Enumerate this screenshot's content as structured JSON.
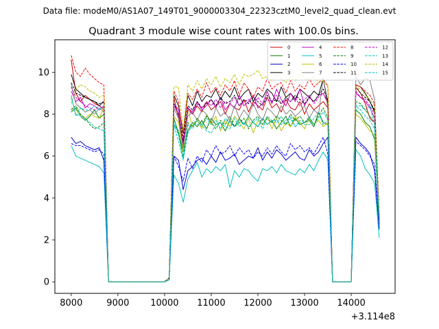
{
  "figure": {
    "suptitle": "Data file: modeM0/AS1A07_149T01_9000003304_22323cztM0_level2_quad_clean.evt"
  },
  "chart_data": {
    "type": "line",
    "title": "Quadrant 3 module wise count rates with 100.0s bins.",
    "xlabel": "",
    "ylabel": "",
    "x_offset_label": "+3.114e8",
    "xlim": [
      7650,
      14940
    ],
    "ylim": [
      -0.55,
      11.55
    ],
    "xticks": [
      8000,
      9000,
      10000,
      11000,
      12000,
      13000,
      14000
    ],
    "xtick_labels": [
      "8000",
      "9000",
      "10000",
      "11000",
      "12000",
      "13000",
      "14000"
    ],
    "yticks": [
      0,
      2,
      4,
      6,
      8,
      10
    ],
    "ytick_labels": [
      "0",
      "2",
      "4",
      "6",
      "8",
      "10"
    ],
    "grid": false,
    "legend_position": "top-right",
    "legend_columns": 4,
    "x": [
      8000,
      8100,
      8200,
      8300,
      8400,
      8500,
      8600,
      8700,
      8800,
      8900,
      9000,
      9100,
      9200,
      9300,
      9400,
      9500,
      9600,
      9700,
      9800,
      9900,
      10000,
      10100,
      10200,
      10300,
      10400,
      10500,
      10600,
      10700,
      10800,
      10900,
      11000,
      11100,
      11200,
      11300,
      11400,
      11500,
      11600,
      11700,
      11800,
      11900,
      12000,
      12100,
      12200,
      12300,
      12400,
      12500,
      12600,
      12700,
      12800,
      12900,
      13000,
      13100,
      13200,
      13300,
      13400,
      13500,
      13600,
      13700,
      13800,
      13900,
      14000,
      14100,
      14200,
      14300,
      14400,
      14500,
      14600
    ],
    "series": [
      {
        "name": "0",
        "color": "#cc0000",
        "dash": "solid",
        "values": [
          10.6,
          9.0,
          8.6,
          8.9,
          8.7,
          8.5,
          8.4,
          8.2,
          0,
          0,
          0,
          0,
          0,
          0,
          0,
          0,
          0,
          0,
          0,
          0,
          0,
          0.2,
          8.8,
          7.8,
          6.4,
          8.3,
          8.0,
          8.4,
          8.1,
          8.6,
          8.2,
          8.4,
          8.6,
          8.0,
          8.5,
          8.3,
          8.2,
          8.7,
          8.1,
          8.6,
          8.4,
          8.2,
          8.8,
          8.3,
          8.5,
          8.1,
          8.7,
          8.3,
          8.2,
          8.6,
          8.0,
          8.5,
          8.2,
          8.4,
          8.6,
          8.3,
          0,
          0,
          0,
          0,
          0,
          9.3,
          9.0,
          8.5,
          7.8,
          7.6,
          2.8
        ]
      },
      {
        "name": "1",
        "color": "#007f00",
        "dash": "solid",
        "values": [
          8.1,
          8.3,
          7.9,
          7.7,
          7.9,
          8.2,
          7.8,
          8.0,
          0,
          0,
          0,
          0,
          0,
          0,
          0,
          0,
          0,
          0,
          0,
          0,
          0,
          0.1,
          7.8,
          7.1,
          6.2,
          7.2,
          7.6,
          7.4,
          7.7,
          7.3,
          7.8,
          7.5,
          7.6,
          7.2,
          7.7,
          7.4,
          7.8,
          7.5,
          7.9,
          7.6,
          7.4,
          7.8,
          7.5,
          7.7,
          7.3,
          7.6,
          7.9,
          7.4,
          7.8,
          7.5,
          7.6,
          7.7,
          7.4,
          8.1,
          7.6,
          7.5,
          0,
          0,
          0,
          0,
          0,
          8.2,
          8.0,
          7.6,
          7.4,
          6.8,
          2.8
        ]
      },
      {
        "name": "2",
        "color": "#0000cc",
        "dash": "solid",
        "values": [
          6.9,
          6.6,
          6.7,
          6.5,
          6.4,
          6.3,
          6.4,
          5.8,
          0,
          0,
          0,
          0,
          0,
          0,
          0,
          0,
          0,
          0,
          0,
          0,
          0,
          0.1,
          6.0,
          5.8,
          4.4,
          5.3,
          5.5,
          5.8,
          5.9,
          5.6,
          6.0,
          5.7,
          6.2,
          5.8,
          5.9,
          6.1,
          5.6,
          5.8,
          6.0,
          5.9,
          6.4,
          5.8,
          6.2,
          5.9,
          6.3,
          6.1,
          5.8,
          6.0,
          6.2,
          5.9,
          5.8,
          6.3,
          6.0,
          6.2,
          6.6,
          6.9,
          0,
          0,
          0,
          0,
          0,
          6.9,
          6.6,
          6.4,
          6.1,
          5.3,
          2.5
        ]
      },
      {
        "name": "3",
        "color": "#000000",
        "dash": "solid",
        "values": [
          9.9,
          9.2,
          9.0,
          8.8,
          8.7,
          8.6,
          8.4,
          8.6,
          0,
          0,
          0,
          0,
          0,
          0,
          0,
          0,
          0,
          0,
          0,
          0,
          0,
          0.2,
          8.9,
          8.4,
          7.1,
          8.9,
          8.4,
          9.1,
          8.6,
          8.9,
          8.8,
          9.2,
          8.7,
          9.1,
          8.8,
          9.3,
          8.7,
          9.0,
          9.2,
          8.6,
          9.0,
          8.8,
          9.2,
          9.0,
          8.6,
          9.3,
          8.8,
          9.0,
          8.7,
          9.2,
          9.0,
          8.8,
          9.1,
          8.9,
          9.7,
          8.5,
          0,
          0,
          0,
          0,
          0,
          9.4,
          9.3,
          9.0,
          8.6,
          8.1,
          3.0
        ]
      },
      {
        "name": "4",
        "color": "#bf00bf",
        "dash": "solid",
        "values": [
          9.1,
          8.6,
          8.8,
          8.3,
          8.5,
          8.4,
          8.2,
          8.4,
          0,
          0,
          0,
          0,
          0,
          0,
          0,
          0,
          0,
          0,
          0,
          0,
          0,
          0.1,
          8.5,
          8.2,
          6.5,
          8.3,
          8.1,
          8.6,
          8.2,
          8.4,
          8.7,
          8.3,
          8.8,
          8.2,
          8.5,
          8.3,
          8.9,
          8.4,
          8.6,
          8.9,
          8.3,
          8.5,
          9.1,
          8.5,
          9.2,
          8.7,
          8.4,
          9.0,
          8.6,
          9.2,
          8.4,
          8.8,
          8.6,
          8.9,
          9.0,
          8.5,
          0,
          0,
          0,
          0,
          0,
          9.0,
          8.8,
          8.6,
          8.3,
          7.8,
          2.9
        ]
      },
      {
        "name": "5",
        "color": "#00bfbf",
        "dash": "solid",
        "values": [
          6.5,
          6.0,
          5.9,
          5.8,
          5.7,
          5.6,
          5.5,
          5.2,
          0,
          0,
          0,
          0,
          0,
          0,
          0,
          0,
          0,
          0,
          0,
          0,
          0,
          0.1,
          5.1,
          4.7,
          3.8,
          4.9,
          5.3,
          5.7,
          5.0,
          5.4,
          5.2,
          5.5,
          5.3,
          5.6,
          4.5,
          5.3,
          5.0,
          5.4,
          5.3,
          5.0,
          4.8,
          5.4,
          5.3,
          5.5,
          5.2,
          5.6,
          5.3,
          5.2,
          5.1,
          5.4,
          5.2,
          5.6,
          5.3,
          5.8,
          6.2,
          5.8,
          0,
          0,
          0,
          0,
          0,
          6.3,
          6.0,
          5.4,
          5.1,
          4.7,
          2.1
        ]
      },
      {
        "name": "6",
        "color": "#bfbf00",
        "dash": "solid",
        "values": [
          8.3,
          8.2,
          8.0,
          7.8,
          8.0,
          7.9,
          7.8,
          8.3,
          0,
          0,
          0,
          0,
          0,
          0,
          0,
          0,
          0,
          0,
          0,
          0,
          0,
          0.1,
          7.9,
          7.6,
          6.2,
          8.2,
          7.4,
          7.7,
          7.3,
          8.0,
          7.5,
          7.9,
          7.2,
          7.7,
          7.4,
          7.9,
          7.6,
          7.3,
          7.8,
          7.1,
          7.7,
          7.5,
          7.9,
          7.3,
          7.8,
          7.2,
          7.6,
          7.4,
          7.9,
          7.6,
          7.3,
          7.8,
          7.5,
          7.7,
          7.4,
          7.6,
          0,
          0,
          0,
          0,
          0,
          8.0,
          7.8,
          7.5,
          7.2,
          7.0,
          2.9
        ]
      },
      {
        "name": "7",
        "color": "#7f7f7f",
        "dash": "solid",
        "values": [
          9.4,
          8.5,
          8.3,
          8.1,
          8.2,
          8.0,
          8.3,
          8.1,
          0,
          0,
          0,
          0,
          0,
          0,
          0,
          0,
          0,
          0,
          0,
          0,
          0,
          0.2,
          8.3,
          7.8,
          6.4,
          7.9,
          8.1,
          7.7,
          8.2,
          8.0,
          7.6,
          8.3,
          7.9,
          8.1,
          7.7,
          8.4,
          7.8,
          8.2,
          7.9,
          8.5,
          8.0,
          7.7,
          8.3,
          8.1,
          7.8,
          8.4,
          8.0,
          8.2,
          7.9,
          8.1,
          8.4,
          7.8,
          8.2,
          8.0,
          9.7,
          8.3,
          0,
          0,
          0,
          0,
          0,
          9.8,
          9.4,
          9.7,
          9.6,
          8.7,
          3.0
        ]
      },
      {
        "name": "8",
        "color": "#ff0000",
        "dash": "dashed",
        "values": [
          10.8,
          10.0,
          9.8,
          10.2,
          9.9,
          9.7,
          9.5,
          9.4,
          0,
          0,
          0,
          0,
          0,
          0,
          0,
          0,
          0,
          0,
          0,
          0,
          0,
          0.2,
          9.1,
          8.6,
          6.8,
          9.0,
          8.7,
          9.2,
          8.8,
          9.5,
          9.0,
          9.3,
          8.9,
          9.4,
          9.1,
          9.6,
          8.9,
          9.5,
          9.2,
          8.8,
          9.3,
          9.1,
          9.7,
          9.2,
          9.4,
          9.5,
          9.0,
          9.6,
          9.1,
          9.4,
          9.2,
          9.7,
          9.3,
          9.5,
          9.7,
          9.3,
          0,
          0,
          0,
          0,
          0,
          9.4,
          9.3,
          9.1,
          8.9,
          8.5,
          3.2
        ]
      },
      {
        "name": "9",
        "color": "#007f00",
        "dash": "dashed",
        "values": [
          8.2,
          8.4,
          8.0,
          7.8,
          7.5,
          7.3,
          7.4,
          7.6,
          0,
          0,
          0,
          0,
          0,
          0,
          0,
          0,
          0,
          0,
          0,
          0,
          0,
          0.1,
          7.5,
          7.2,
          5.9,
          7.6,
          7.4,
          7.8,
          7.5,
          7.9,
          7.6,
          7.3,
          7.7,
          7.5,
          7.9,
          7.4,
          7.6,
          7.8,
          7.3,
          7.7,
          7.9,
          7.5,
          7.8,
          7.6,
          7.9,
          7.7,
          7.5,
          8.0,
          7.7,
          7.9,
          7.6,
          7.8,
          7.5,
          7.9,
          8.3,
          7.8,
          0,
          0,
          0,
          0,
          0,
          8.6,
          8.5,
          8.2,
          7.9,
          7.6,
          2.9
        ]
      },
      {
        "name": "10",
        "color": "#0000ff",
        "dash": "dashed",
        "values": [
          6.6,
          6.5,
          6.5,
          6.4,
          6.3,
          6.2,
          6.3,
          6.1,
          0,
          0,
          0,
          0,
          0,
          0,
          0,
          0,
          0,
          0,
          0,
          0,
          0,
          0.1,
          6.0,
          5.5,
          4.8,
          5.9,
          5.4,
          6.0,
          5.7,
          6.3,
          6.0,
          6.5,
          6.1,
          6.2,
          6.5,
          6.0,
          6.4,
          6.1,
          6.3,
          5.9,
          6.2,
          6.0,
          6.4,
          6.1,
          6.5,
          6.2,
          6.0,
          6.6,
          6.3,
          6.5,
          6.2,
          6.4,
          6.1,
          6.5,
          6.9,
          6.1,
          0,
          0,
          0,
          0,
          0,
          6.7,
          6.5,
          6.3,
          6.0,
          5.6,
          2.6
        ]
      },
      {
        "name": "11",
        "color": "#000000",
        "dash": "dashed",
        "values": [
          9.5,
          9.0,
          8.9,
          8.8,
          8.7,
          8.6,
          8.5,
          8.6,
          0,
          0,
          0,
          0,
          0,
          0,
          0,
          0,
          0,
          0,
          0,
          0,
          0,
          0.2,
          8.5,
          8.0,
          6.7,
          8.4,
          8.2,
          8.6,
          8.3,
          8.5,
          8.7,
          8.4,
          8.8,
          8.5,
          8.6,
          8.9,
          8.4,
          8.7,
          8.5,
          8.8,
          8.6,
          8.4,
          8.9,
          8.6,
          8.7,
          8.5,
          8.8,
          8.6,
          8.9,
          8.7,
          8.5,
          8.8,
          8.6,
          8.9,
          9.2,
          8.7,
          0,
          0,
          0,
          0,
          0,
          9.3,
          9.0,
          8.8,
          8.6,
          8.2,
          3.0
        ]
      },
      {
        "name": "12",
        "color": "#bf00bf",
        "dash": "dashed",
        "values": [
          9.3,
          8.8,
          8.6,
          8.4,
          8.3,
          8.2,
          8.4,
          8.3,
          0,
          0,
          0,
          0,
          0,
          0,
          0,
          0,
          0,
          0,
          0,
          0,
          0,
          0.1,
          8.4,
          8.0,
          6.6,
          8.2,
          8.0,
          8.5,
          8.3,
          8.6,
          8.4,
          8.7,
          8.3,
          8.6,
          8.5,
          8.8,
          8.4,
          8.6,
          8.7,
          8.4,
          8.8,
          8.5,
          8.7,
          8.6,
          8.9,
          8.5,
          8.7,
          8.6,
          8.8,
          8.4,
          8.7,
          8.9,
          8.5,
          8.8,
          9.0,
          8.6,
          0,
          0,
          0,
          0,
          0,
          9.1,
          8.8,
          8.7,
          8.4,
          8.0,
          2.9
        ]
      },
      {
        "name": "13",
        "color": "#00bfbf",
        "dash": "dashed",
        "values": [
          8.8,
          8.0,
          7.9,
          7.8,
          7.6,
          7.4,
          7.3,
          7.2,
          0,
          0,
          0,
          0,
          0,
          0,
          0,
          0,
          0,
          0,
          0,
          0,
          0,
          0.1,
          7.6,
          7.0,
          5.9,
          7.5,
          7.3,
          7.7,
          7.4,
          7.8,
          7.5,
          7.7,
          7.3,
          7.8,
          7.6,
          7.4,
          7.7,
          7.5,
          7.9,
          7.6,
          7.4,
          7.8,
          7.5,
          7.7,
          7.6,
          7.9,
          7.5,
          7.8,
          7.4,
          7.7,
          7.6,
          7.9,
          7.5,
          7.8,
          8.1,
          7.7,
          0,
          0,
          0,
          0,
          0,
          8.4,
          8.2,
          7.9,
          7.7,
          7.3,
          2.8
        ]
      },
      {
        "name": "14",
        "color": "#bfbf00",
        "dash": "dashed",
        "values": [
          8.5,
          9.2,
          9.4,
          9.3,
          9.1,
          9.0,
          8.8,
          8.9,
          0,
          0,
          0,
          0,
          0,
          0,
          0,
          0,
          0,
          0,
          0,
          0,
          0,
          0.2,
          9.3,
          9.3,
          7.2,
          9.4,
          9.1,
          9.6,
          9.2,
          9.7,
          9.4,
          9.8,
          9.3,
          9.7,
          9.5,
          9.9,
          9.4,
          9.9,
          9.8,
          9.9,
          10.1,
          9.7,
          9.8,
          9.6,
          9.9,
          9.7,
          9.5,
          9.8,
          9.6,
          9.9,
          9.7,
          9.6,
          9.8,
          9.5,
          9.6,
          9.4,
          0,
          0,
          0,
          0,
          0,
          9.3,
          9.2,
          8.9,
          8.7,
          8.4,
          3.1
        ]
      },
      {
        "name": "15",
        "color": "#00bfbf",
        "dash": "dashed",
        "values": [
          8.9,
          7.9,
          8.3,
          8.2,
          8.2,
          8.4,
          8.2,
          8.4,
          0,
          0,
          0,
          0,
          0,
          0,
          0,
          0,
          0,
          0,
          0,
          0,
          0,
          0.1,
          7.5,
          6.7,
          5.8,
          7.1,
          7.5,
          7.5,
          7.5,
          7.2,
          7.1,
          7.5,
          7.6,
          7.4,
          7.3,
          7.8,
          7.4,
          7.6,
          7.4,
          7.6,
          7.8,
          7.3,
          7.9,
          7.7,
          7.7,
          7.5,
          7.7,
          7.9,
          7.4,
          7.6,
          7.5,
          7.5,
          7.8,
          8.1,
          7.5,
          7.7,
          0,
          0,
          0,
          0,
          0,
          8.4,
          8.4,
          8.2,
          8.4,
          7.5,
          3.0
        ]
      }
    ]
  }
}
